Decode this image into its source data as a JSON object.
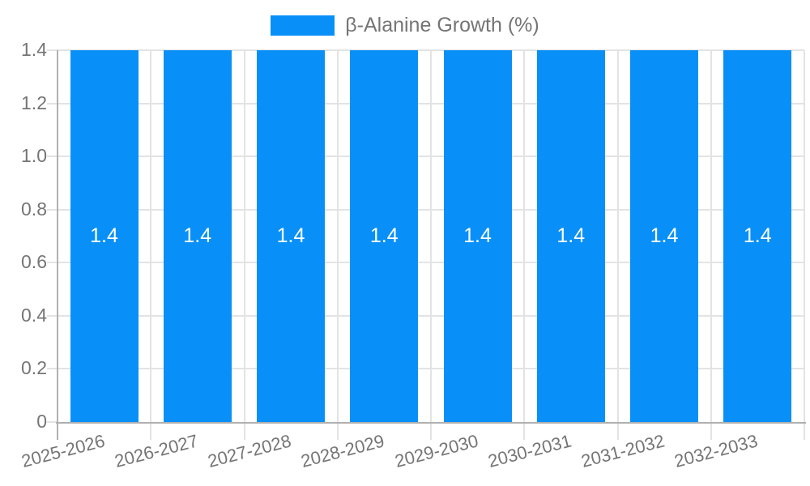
{
  "legend": {
    "label": "β-Alanine Growth (%)"
  },
  "chart_data": {
    "type": "bar",
    "title": "",
    "legend_entries": [
      "β-Alanine Growth (%)"
    ],
    "legend_position": "top-center",
    "categories": [
      "2025-2026",
      "2026-2027",
      "2027-2028",
      "2028-2029",
      "2029-2030",
      "2030-2031",
      "2031-2032",
      "2032-2033"
    ],
    "series": [
      {
        "name": "β-Alanine Growth (%)",
        "values": [
          1.4,
          1.4,
          1.4,
          1.4,
          1.4,
          1.4,
          1.4,
          1.4
        ]
      }
    ],
    "bar_value_labels": [
      "1.4",
      "1.4",
      "1.4",
      "1.4",
      "1.4",
      "1.4",
      "1.4",
      "1.4"
    ],
    "xlabel": "",
    "ylabel": "",
    "ylim": [
      0,
      1.4
    ],
    "ytick_labels": [
      "0",
      "0.2",
      "0.4",
      "0.6",
      "0.8",
      "1.0",
      "1.2",
      "1.4"
    ],
    "ytick_values": [
      0,
      0.2,
      0.4,
      0.6,
      0.8,
      1.0,
      1.2,
      1.4
    ],
    "grid": "horizontal and vertical category boundaries",
    "colors": {
      "bar": "#0990f8",
      "grid": "#e3e3e3",
      "axis": "#b0b0b0",
      "tick_text": "#757575",
      "legend_text": "#757575",
      "bar_label_text": "#ffffff",
      "background": "#ffffff"
    }
  }
}
